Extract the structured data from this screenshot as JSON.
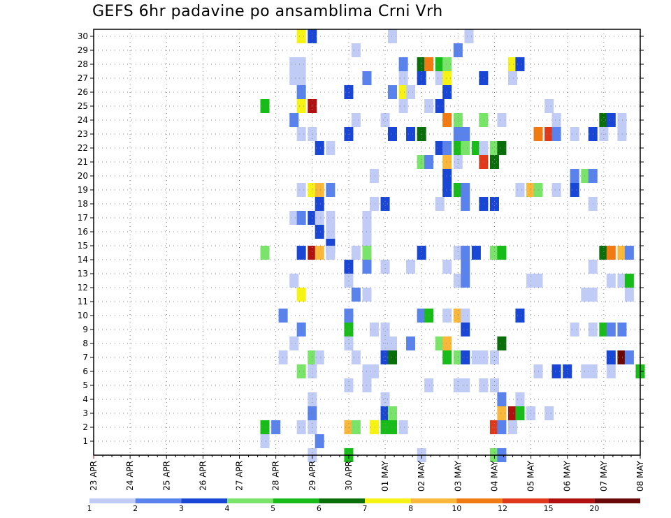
{
  "title": "GEFS 6hr padavine po ansamblima Crni Vrh",
  "chart_data": {
    "type": "heatmap",
    "title": "GEFS 6hr padavine po ansamblima Crni Vrh",
    "x_labels": [
      "23 APR",
      "24 APR",
      "25 APR",
      "26 APR",
      "27 APR",
      "28 APR",
      "29 APR",
      "30 APR",
      "01 MAY",
      "02 MAY",
      "03 MAY",
      "04 MAY",
      "05 MAY",
      "06 MAY",
      "07 MAY",
      "08 MAY"
    ],
    "y_ticks": [
      1,
      2,
      3,
      4,
      5,
      6,
      7,
      8,
      9,
      10,
      11,
      12,
      13,
      14,
      15,
      16,
      17,
      18,
      19,
      20,
      21,
      22,
      23,
      24,
      25,
      26,
      27,
      28,
      29,
      30
    ],
    "ylim": [
      0,
      30.5
    ],
    "x_step": "6 hr",
    "grid": true,
    "colorbar": {
      "labels": [
        "1",
        "2",
        "3",
        "4",
        "5",
        "6",
        "7",
        "8",
        "10",
        "12",
        "15",
        "20"
      ],
      "colors": [
        "#c0ccf6",
        "#5a82ec",
        "#1a46d6",
        "#7ae46a",
        "#18bc18",
        "#0a6e0a",
        "#f6f214",
        "#f9b83a",
        "#f27a12",
        "#e0381a",
        "#b01010",
        "#6a0808"
      ]
    },
    "cells": [
      [
        5.7,
        30,
        "#f6f214"
      ],
      [
        6.0,
        30,
        "#1a46d6"
      ],
      [
        8.2,
        30,
        "#c0ccf6"
      ],
      [
        10.3,
        30,
        "#c0ccf6"
      ],
      [
        7.2,
        29,
        "#c0ccf6"
      ],
      [
        10.0,
        29,
        "#5a82ec"
      ],
      [
        5.5,
        28,
        "#c0ccf6"
      ],
      [
        5.7,
        28,
        "#c0ccf6"
      ],
      [
        8.5,
        28,
        "#5a82ec"
      ],
      [
        9.0,
        28,
        "#0a6e0a"
      ],
      [
        9.2,
        28,
        "#f27a12"
      ],
      [
        9.5,
        28,
        "#18bc18"
      ],
      [
        9.7,
        28,
        "#7ae46a"
      ],
      [
        11.5,
        28,
        "#f6f214"
      ],
      [
        11.7,
        28,
        "#1a46d6"
      ],
      [
        5.5,
        27,
        "#c0ccf6"
      ],
      [
        5.7,
        27,
        "#c0ccf6"
      ],
      [
        7.5,
        27,
        "#5a82ec"
      ],
      [
        8.5,
        27,
        "#c0ccf6"
      ],
      [
        9.0,
        27,
        "#1a46d6"
      ],
      [
        9.5,
        27,
        "#c0ccf6"
      ],
      [
        9.7,
        27,
        "#f6f214"
      ],
      [
        10.7,
        27,
        "#1a46d6"
      ],
      [
        11.5,
        27,
        "#c0ccf6"
      ],
      [
        5.7,
        26,
        "#5a82ec"
      ],
      [
        7.0,
        26,
        "#1a46d6"
      ],
      [
        8.2,
        26,
        "#5a82ec"
      ],
      [
        8.5,
        26,
        "#f6f214"
      ],
      [
        8.7,
        26,
        "#c0ccf6"
      ],
      [
        9.7,
        26,
        "#1a46d6"
      ],
      [
        4.7,
        25,
        "#18bc18"
      ],
      [
        5.7,
        25,
        "#f6f214"
      ],
      [
        6.0,
        25,
        "#b01010"
      ],
      [
        8.5,
        25,
        "#c0ccf6"
      ],
      [
        9.2,
        25,
        "#c0ccf6"
      ],
      [
        9.5,
        25,
        "#1a46d6"
      ],
      [
        12.5,
        25,
        "#c0ccf6"
      ],
      [
        5.5,
        24,
        "#5a82ec"
      ],
      [
        7.2,
        24,
        "#c0ccf6"
      ],
      [
        8.0,
        24,
        "#c0ccf6"
      ],
      [
        9.7,
        24,
        "#f27a12"
      ],
      [
        10.0,
        24,
        "#7ae46a"
      ],
      [
        10.7,
        24,
        "#7ae46a"
      ],
      [
        11.2,
        24,
        "#c0ccf6"
      ],
      [
        12.7,
        24,
        "#c0ccf6"
      ],
      [
        14.0,
        24,
        "#0a6e0a"
      ],
      [
        14.2,
        24,
        "#1a46d6"
      ],
      [
        14.5,
        24,
        "#c0ccf6"
      ],
      [
        5.7,
        23,
        "#c0ccf6"
      ],
      [
        6.0,
        23,
        "#c0ccf6"
      ],
      [
        7.0,
        23,
        "#1a46d6"
      ],
      [
        8.2,
        23,
        "#1a46d6"
      ],
      [
        8.7,
        23,
        "#1a46d6"
      ],
      [
        9.0,
        23,
        "#0a6e0a"
      ],
      [
        10.0,
        23,
        "#5a82ec"
      ],
      [
        10.2,
        23,
        "#5a82ec"
      ],
      [
        12.2,
        23,
        "#f27a12"
      ],
      [
        12.5,
        23,
        "#e0381a"
      ],
      [
        12.7,
        23,
        "#5a82ec"
      ],
      [
        13.2,
        23,
        "#c0ccf6"
      ],
      [
        13.7,
        23,
        "#1a46d6"
      ],
      [
        14.0,
        23,
        "#c0ccf6"
      ],
      [
        14.5,
        23,
        "#c0ccf6"
      ],
      [
        6.2,
        22,
        "#1a46d6"
      ],
      [
        6.5,
        22,
        "#c0ccf6"
      ],
      [
        9.5,
        22,
        "#1a46d6"
      ],
      [
        9.7,
        22,
        "#5a82ec"
      ],
      [
        10.0,
        22,
        "#18bc18"
      ],
      [
        10.2,
        22,
        "#7ae46a"
      ],
      [
        10.5,
        22,
        "#18bc18"
      ],
      [
        10.7,
        22,
        "#c0ccf6"
      ],
      [
        11.0,
        22,
        "#7ae46a"
      ],
      [
        11.2,
        22,
        "#0a6e0a"
      ],
      [
        9.0,
        21,
        "#7ae46a"
      ],
      [
        9.2,
        21,
        "#5a82ec"
      ],
      [
        9.7,
        21,
        "#f9b83a"
      ],
      [
        10.0,
        21,
        "#c0ccf6"
      ],
      [
        10.7,
        21,
        "#e0381a"
      ],
      [
        11.0,
        21,
        "#0a6e0a"
      ],
      [
        7.7,
        20,
        "#c0ccf6"
      ],
      [
        9.7,
        20,
        "#1a46d6"
      ],
      [
        13.2,
        20,
        "#5a82ec"
      ],
      [
        13.5,
        20,
        "#7ae46a"
      ],
      [
        13.7,
        20,
        "#5a82ec"
      ],
      [
        5.7,
        19,
        "#c0ccf6"
      ],
      [
        6.0,
        19,
        "#f6f214"
      ],
      [
        6.2,
        19,
        "#f9b83a"
      ],
      [
        6.5,
        19,
        "#5a82ec"
      ],
      [
        9.7,
        19,
        "#1a46d6"
      ],
      [
        10.0,
        19,
        "#18bc18"
      ],
      [
        10.2,
        19,
        "#5a82ec"
      ],
      [
        11.7,
        19,
        "#c0ccf6"
      ],
      [
        12.0,
        19,
        "#f9b83a"
      ],
      [
        12.2,
        19,
        "#7ae46a"
      ],
      [
        12.7,
        19,
        "#c0ccf6"
      ],
      [
        13.2,
        19,
        "#1a46d6"
      ],
      [
        6.2,
        18,
        "#1a46d6"
      ],
      [
        7.7,
        18,
        "#c0ccf6"
      ],
      [
        8.0,
        18,
        "#1a46d6"
      ],
      [
        9.5,
        18,
        "#c0ccf6"
      ],
      [
        10.2,
        18,
        "#5a82ec"
      ],
      [
        10.7,
        18,
        "#1a46d6"
      ],
      [
        11.0,
        18,
        "#1a46d6"
      ],
      [
        13.7,
        18,
        "#c0ccf6"
      ],
      [
        5.5,
        17,
        "#c0ccf6"
      ],
      [
        5.7,
        17,
        "#5a82ec"
      ],
      [
        6.0,
        17,
        "#1a46d6"
      ],
      [
        6.2,
        17,
        "#c0ccf6"
      ],
      [
        6.5,
        17,
        "#c0ccf6"
      ],
      [
        7.5,
        17,
        "#c0ccf6"
      ],
      [
        6.2,
        16,
        "#1a46d6"
      ],
      [
        6.5,
        16,
        "#c0ccf6"
      ],
      [
        7.5,
        16,
        "#c0ccf6"
      ],
      [
        6.5,
        15,
        "#1a46d6"
      ],
      [
        7.5,
        15,
        "#c0ccf6"
      ],
      [
        4.7,
        14.5,
        "#7ae46a"
      ],
      [
        5.7,
        14.5,
        "#1a46d6"
      ],
      [
        6.0,
        14.5,
        "#b01010"
      ],
      [
        6.2,
        14.5,
        "#f9b83a"
      ],
      [
        6.5,
        14.5,
        "#c0ccf6"
      ],
      [
        7.2,
        14.5,
        "#c0ccf6"
      ],
      [
        7.5,
        14.5,
        "#7ae46a"
      ],
      [
        9.0,
        14.5,
        "#1a46d6"
      ],
      [
        10.0,
        14.5,
        "#c0ccf6"
      ],
      [
        10.2,
        14.5,
        "#5a82ec"
      ],
      [
        10.5,
        14.5,
        "#1a46d6"
      ],
      [
        11.0,
        14.5,
        "#7ae46a"
      ],
      [
        11.2,
        14.5,
        "#18bc18"
      ],
      [
        14.0,
        14.5,
        "#0a6e0a"
      ],
      [
        14.2,
        14.5,
        "#f27a12"
      ],
      [
        14.5,
        14.5,
        "#f9b83a"
      ],
      [
        14.7,
        14.5,
        "#5a82ec"
      ],
      [
        7.0,
        13.5,
        "#1a46d6"
      ],
      [
        7.5,
        13.5,
        "#5a82ec"
      ],
      [
        8.0,
        13.5,
        "#c0ccf6"
      ],
      [
        8.7,
        13.5,
        "#c0ccf6"
      ],
      [
        9.7,
        13.5,
        "#c0ccf6"
      ],
      [
        10.2,
        13.5,
        "#5a82ec"
      ],
      [
        13.7,
        13.5,
        "#c0ccf6"
      ],
      [
        5.5,
        12.5,
        "#c0ccf6"
      ],
      [
        7.0,
        12.5,
        "#c0ccf6"
      ],
      [
        10.0,
        12.5,
        "#c0ccf6"
      ],
      [
        10.2,
        12.5,
        "#5a82ec"
      ],
      [
        12.0,
        12.5,
        "#c0ccf6"
      ],
      [
        12.2,
        12.5,
        "#c0ccf6"
      ],
      [
        14.2,
        12.5,
        "#c0ccf6"
      ],
      [
        14.5,
        12.5,
        "#c0ccf6"
      ],
      [
        14.7,
        12.5,
        "#18bc18"
      ],
      [
        5.7,
        11.5,
        "#f6f214"
      ],
      [
        7.2,
        11.5,
        "#5a82ec"
      ],
      [
        7.5,
        11.5,
        "#c0ccf6"
      ],
      [
        13.5,
        11.5,
        "#c0ccf6"
      ],
      [
        13.7,
        11.5,
        "#c0ccf6"
      ],
      [
        14.7,
        11.5,
        "#c0ccf6"
      ],
      [
        5.2,
        10,
        "#5a82ec"
      ],
      [
        7.0,
        10,
        "#5a82ec"
      ],
      [
        9.0,
        10,
        "#5a82ec"
      ],
      [
        9.2,
        10,
        "#18bc18"
      ],
      [
        9.7,
        10,
        "#c0ccf6"
      ],
      [
        10.0,
        10,
        "#f9b83a"
      ],
      [
        10.2,
        10,
        "#c0ccf6"
      ],
      [
        11.7,
        10,
        "#1a46d6"
      ],
      [
        5.7,
        9,
        "#5a82ec"
      ],
      [
        7.0,
        9,
        "#18bc18"
      ],
      [
        7.7,
        9,
        "#c0ccf6"
      ],
      [
        8.0,
        9,
        "#c0ccf6"
      ],
      [
        10.2,
        9,
        "#1a46d6"
      ],
      [
        13.2,
        9,
        "#c0ccf6"
      ],
      [
        13.7,
        9,
        "#c0ccf6"
      ],
      [
        14.0,
        9,
        "#18bc18"
      ],
      [
        14.2,
        9,
        "#5a82ec"
      ],
      [
        14.5,
        9,
        "#5a82ec"
      ],
      [
        5.5,
        8,
        "#c0ccf6"
      ],
      [
        7.0,
        8,
        "#c0ccf6"
      ],
      [
        8.0,
        8,
        "#c0ccf6"
      ],
      [
        8.2,
        8,
        "#c0ccf6"
      ],
      [
        8.7,
        8,
        "#5a82ec"
      ],
      [
        9.5,
        8,
        "#7ae46a"
      ],
      [
        9.7,
        8,
        "#f9b83a"
      ],
      [
        11.2,
        8,
        "#0a6e0a"
      ],
      [
        5.2,
        7,
        "#c0ccf6"
      ],
      [
        6.0,
        7,
        "#7ae46a"
      ],
      [
        6.2,
        7,
        "#c0ccf6"
      ],
      [
        7.2,
        7,
        "#c0ccf6"
      ],
      [
        8.0,
        7,
        "#1a46d6"
      ],
      [
        8.2,
        7,
        "#0a6e0a"
      ],
      [
        9.7,
        7,
        "#18bc18"
      ],
      [
        10.0,
        7,
        "#7ae46a"
      ],
      [
        10.2,
        7,
        "#1a46d6"
      ],
      [
        10.5,
        7,
        "#c0ccf6"
      ],
      [
        10.7,
        7,
        "#c0ccf6"
      ],
      [
        11.0,
        7,
        "#c0ccf6"
      ],
      [
        14.2,
        7,
        "#1a46d6"
      ],
      [
        14.5,
        7,
        "#6a0808"
      ],
      [
        14.7,
        7,
        "#5a82ec"
      ],
      [
        5.7,
        6,
        "#7ae46a"
      ],
      [
        6.0,
        6,
        "#c0ccf6"
      ],
      [
        7.5,
        6,
        "#c0ccf6"
      ],
      [
        7.7,
        6,
        "#c0ccf6"
      ],
      [
        12.2,
        6,
        "#c0ccf6"
      ],
      [
        12.7,
        6,
        "#1a46d6"
      ],
      [
        13.0,
        6,
        "#1a46d6"
      ],
      [
        13.5,
        6,
        "#c0ccf6"
      ],
      [
        13.7,
        6,
        "#c0ccf6"
      ],
      [
        14.2,
        6,
        "#c0ccf6"
      ],
      [
        15.0,
        6,
        "#18bc18"
      ],
      [
        7.0,
        5,
        "#c0ccf6"
      ],
      [
        7.5,
        5,
        "#c0ccf6"
      ],
      [
        9.2,
        5,
        "#c0ccf6"
      ],
      [
        10.0,
        5,
        "#c0ccf6"
      ],
      [
        10.2,
        5,
        "#c0ccf6"
      ],
      [
        10.7,
        5,
        "#c0ccf6"
      ],
      [
        11.0,
        5,
        "#c0ccf6"
      ],
      [
        6.0,
        4,
        "#c0ccf6"
      ],
      [
        8.0,
        4,
        "#c0ccf6"
      ],
      [
        11.2,
        4,
        "#5a82ec"
      ],
      [
        11.7,
        4,
        "#c0ccf6"
      ],
      [
        6.0,
        3,
        "#5a82ec"
      ],
      [
        8.0,
        3,
        "#1a46d6"
      ],
      [
        8.2,
        3,
        "#7ae46a"
      ],
      [
        11.2,
        3,
        "#f9b83a"
      ],
      [
        11.5,
        3,
        "#b01010"
      ],
      [
        11.7,
        3,
        "#18bc18"
      ],
      [
        12.0,
        3,
        "#c0ccf6"
      ],
      [
        12.5,
        3,
        "#c0ccf6"
      ],
      [
        4.7,
        2,
        "#18bc18"
      ],
      [
        5.0,
        2,
        "#5a82ec"
      ],
      [
        5.7,
        2,
        "#c0ccf6"
      ],
      [
        6.0,
        2,
        "#c0ccf6"
      ],
      [
        7.0,
        2,
        "#f9b83a"
      ],
      [
        7.2,
        2,
        "#7ae46a"
      ],
      [
        7.7,
        2,
        "#f6f214"
      ],
      [
        8.0,
        2,
        "#18bc18"
      ],
      [
        8.2,
        2,
        "#18bc18"
      ],
      [
        8.5,
        2,
        "#c0ccf6"
      ],
      [
        11.0,
        2,
        "#e0381a"
      ],
      [
        11.2,
        2,
        "#5a82ec"
      ],
      [
        11.5,
        2,
        "#c0ccf6"
      ],
      [
        4.7,
        1,
        "#c0ccf6"
      ],
      [
        6.2,
        1,
        "#5a82ec"
      ],
      [
        6.0,
        0,
        "#c0ccf6"
      ],
      [
        7.0,
        0,
        "#18bc18"
      ],
      [
        9.0,
        0,
        "#c0ccf6"
      ],
      [
        11.0,
        0,
        "#7ae46a"
      ],
      [
        11.2,
        0,
        "#5a82ec"
      ]
    ]
  }
}
